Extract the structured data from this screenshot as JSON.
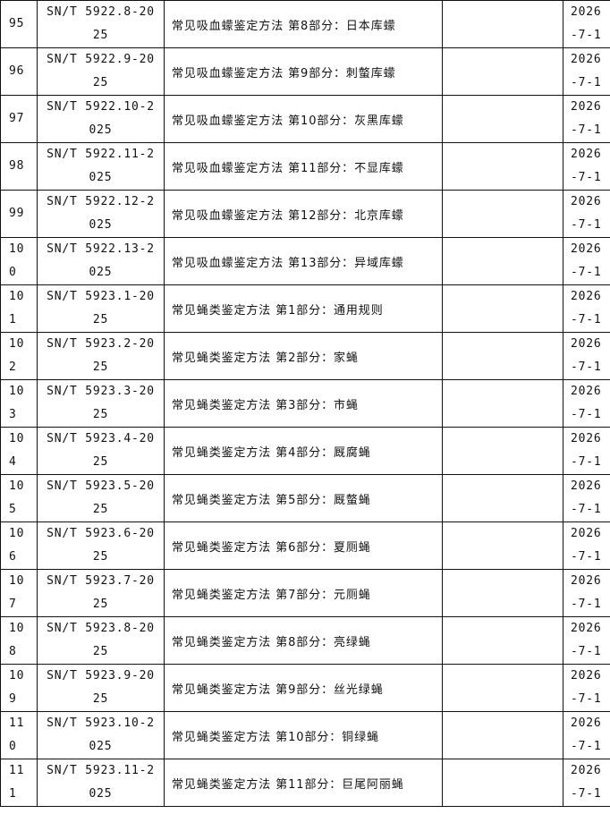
{
  "rows": [
    {
      "no": "95",
      "code": "SN/T 5922.8-2025",
      "name": "常见吸血蠓鉴定方法 第8部分：日本库蠓",
      "replaced": "",
      "date": "2026-7-1"
    },
    {
      "no": "96",
      "code": "SN/T 5922.9-2025",
      "name": "常见吸血蠓鉴定方法 第9部分：刺螫库蠓",
      "replaced": "",
      "date": "2026-7-1"
    },
    {
      "no": "97",
      "code": "SN/T 5922.10-2025",
      "name": "常见吸血蠓鉴定方法 第10部分：灰黑库蠓",
      "replaced": "",
      "date": "2026-7-1"
    },
    {
      "no": "98",
      "code": "SN/T 5922.11-2025",
      "name": "常见吸血蠓鉴定方法 第11部分：不显库蠓",
      "replaced": "",
      "date": "2026-7-1"
    },
    {
      "no": "99",
      "code": "SN/T 5922.12-2025",
      "name": "常见吸血蠓鉴定方法 第12部分：北京库蠓",
      "replaced": "",
      "date": "2026-7-1"
    },
    {
      "no": "100",
      "code": "SN/T 5922.13-2025",
      "name": "常见吸血蠓鉴定方法 第13部分：异域库蠓",
      "replaced": "",
      "date": "2026-7-1"
    },
    {
      "no": "101",
      "code": "SN/T 5923.1-2025",
      "name": "常见蝇类鉴定方法 第1部分：通用规则",
      "replaced": "",
      "date": "2026-7-1"
    },
    {
      "no": "102",
      "code": "SN/T 5923.2-2025",
      "name": "常见蝇类鉴定方法 第2部分：家蝇",
      "replaced": "",
      "date": "2026-7-1"
    },
    {
      "no": "103",
      "code": "SN/T 5923.3-2025",
      "name": "常见蝇类鉴定方法 第3部分：市蝇",
      "replaced": "",
      "date": "2026-7-1"
    },
    {
      "no": "104",
      "code": "SN/T 5923.4-2025",
      "name": "常见蝇类鉴定方法 第4部分：厩腐蝇",
      "replaced": "",
      "date": "2026-7-1"
    },
    {
      "no": "105",
      "code": "SN/T 5923.5-2025",
      "name": "常见蝇类鉴定方法 第5部分：厩螫蝇",
      "replaced": "",
      "date": "2026-7-1"
    },
    {
      "no": "106",
      "code": "SN/T 5923.6-2025",
      "name": "常见蝇类鉴定方法 第6部分：夏厕蝇",
      "replaced": "",
      "date": "2026-7-1"
    },
    {
      "no": "107",
      "code": "SN/T 5923.7-2025",
      "name": "常见蝇类鉴定方法 第7部分：元厕蝇",
      "replaced": "",
      "date": "2026-7-1"
    },
    {
      "no": "108",
      "code": "SN/T 5923.8-2025",
      "name": "常见蝇类鉴定方法 第8部分：亮绿蝇",
      "replaced": "",
      "date": "2026-7-1"
    },
    {
      "no": "109",
      "code": "SN/T 5923.9-2025",
      "name": "常见蝇类鉴定方法 第9部分：丝光绿蝇",
      "replaced": "",
      "date": "2026-7-1"
    },
    {
      "no": "110",
      "code": "SN/T 5923.10-2025",
      "name": "常见蝇类鉴定方法 第10部分：铜绿蝇",
      "replaced": "",
      "date": "2026-7-1"
    },
    {
      "no": "111",
      "code": "SN/T 5923.11-2025",
      "name": "常见蝇类鉴定方法 第11部分：巨尾阿丽蝇",
      "replaced": "",
      "date": "2026-7-1"
    }
  ]
}
